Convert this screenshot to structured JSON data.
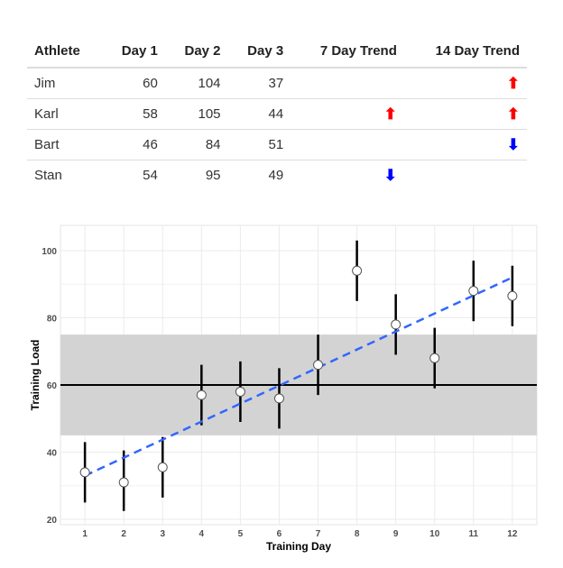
{
  "table": {
    "headers": [
      "Athlete",
      "Day 1",
      "Day 2",
      "Day 3",
      "7 Day Trend",
      "14 Day Trend"
    ],
    "rows": [
      {
        "athlete": "Jim",
        "day1": "60",
        "day2": "104",
        "day3": "37",
        "trend7": "",
        "trend14": "up"
      },
      {
        "athlete": "Karl",
        "day1": "58",
        "day2": "105",
        "day3": "44",
        "trend7": "up",
        "trend14": "up"
      },
      {
        "athlete": "Bart",
        "day1": "46",
        "day2": "84",
        "day3": "51",
        "trend7": "",
        "trend14": "down"
      },
      {
        "athlete": "Stan",
        "day1": "54",
        "day2": "95",
        "day3": "49",
        "trend7": "down",
        "trend14": ""
      }
    ],
    "colors": {
      "up": "#ff0000",
      "down": "#0000ff"
    }
  },
  "chart_data": {
    "type": "scatter",
    "xlabel": "Training Day",
    "ylabel": "Training Load",
    "xlim": [
      0.37,
      12.63
    ],
    "ylim": [
      18.4,
      107.5
    ],
    "xticks": [
      1,
      2,
      3,
      4,
      5,
      6,
      7,
      8,
      9,
      10,
      11,
      12
    ],
    "yticks": [
      20,
      40,
      60,
      80,
      100
    ],
    "grid": true,
    "points": [
      {
        "x": 1,
        "y": 34,
        "low": 25,
        "high": 43
      },
      {
        "x": 2,
        "y": 31,
        "low": 22.5,
        "high": 40.5
      },
      {
        "x": 3,
        "y": 35.5,
        "low": 26.5,
        "high": 44.5
      },
      {
        "x": 4,
        "y": 57,
        "low": 48,
        "high": 66
      },
      {
        "x": 5,
        "y": 58,
        "low": 49,
        "high": 67
      },
      {
        "x": 6,
        "y": 56,
        "low": 47,
        "high": 65
      },
      {
        "x": 7,
        "y": 66,
        "low": 57,
        "high": 75
      },
      {
        "x": 8,
        "y": 94,
        "low": 85,
        "high": 103
      },
      {
        "x": 9,
        "y": 78,
        "low": 69,
        "high": 87
      },
      {
        "x": 10,
        "y": 68,
        "low": 59,
        "high": 77
      },
      {
        "x": 11,
        "y": 88,
        "low": 79,
        "high": 97
      },
      {
        "x": 12,
        "y": 86.5,
        "low": 77.5,
        "high": 95.5
      }
    ],
    "band": {
      "low": 45,
      "high": 75,
      "color": "#d3d3d3"
    },
    "reference_line": 60,
    "trend_line": {
      "x": [
        1,
        12
      ],
      "y": [
        33,
        92
      ],
      "color": "#3366ff",
      "style": "dashed"
    }
  }
}
